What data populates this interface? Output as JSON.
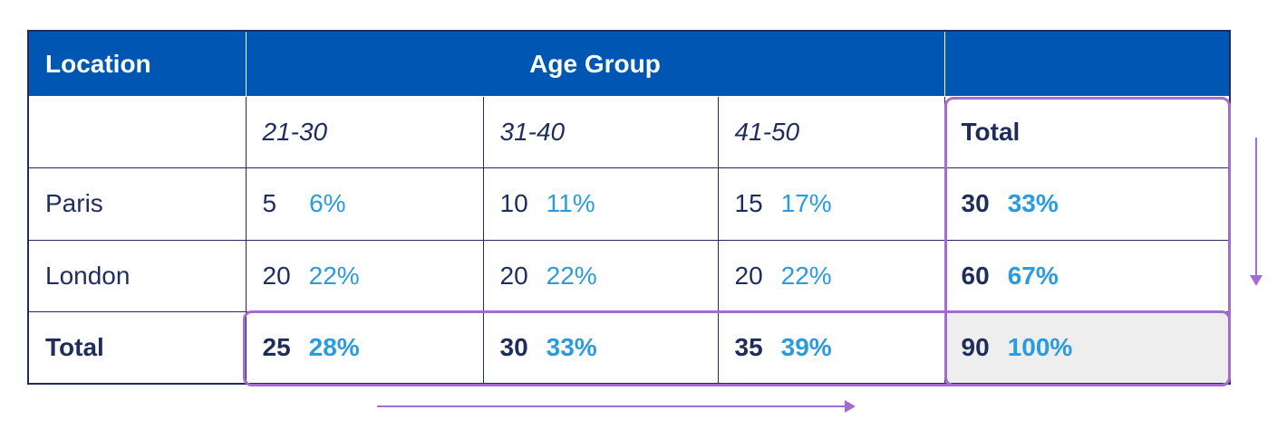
{
  "header": {
    "location": "Location",
    "age_group": "Age Group",
    "blank": ""
  },
  "subheader": {
    "blank": "",
    "ages": [
      "21-30",
      "31-40",
      "41-50"
    ],
    "total": "Total"
  },
  "rows": [
    {
      "label": "Paris",
      "cells": [
        {
          "count": "5",
          "pct": "6%"
        },
        {
          "count": "10",
          "pct": "11%"
        },
        {
          "count": "15",
          "pct": "17%"
        }
      ],
      "total": {
        "count": "30",
        "pct": "33%"
      }
    },
    {
      "label": "London",
      "cells": [
        {
          "count": "20",
          "pct": "22%"
        },
        {
          "count": "20",
          "pct": "22%"
        },
        {
          "count": "20",
          "pct": "22%"
        }
      ],
      "total": {
        "count": "60",
        "pct": "67%"
      }
    }
  ],
  "totals": {
    "label": "Total",
    "cells": [
      {
        "count": "25",
        "pct": "28%"
      },
      {
        "count": "30",
        "pct": "33%"
      },
      {
        "count": "35",
        "pct": "39%"
      }
    ],
    "grand": {
      "count": "90",
      "pct": "100%"
    }
  },
  "colors": {
    "header_bg": "#0057b3",
    "text": "#1f2d5c",
    "percent": "#2b9be0",
    "highlight": "#a46bd0",
    "grand_total_bg": "#eeeeee"
  }
}
